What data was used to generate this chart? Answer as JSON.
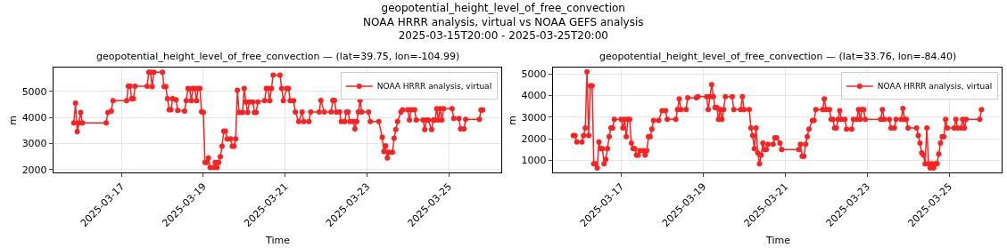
{
  "chart_data": [
    {
      "type": "line",
      "title": "geopotential_height_level_of_free_convection — (lat=39.75, lon=-104.99)",
      "xlabel": "Time",
      "ylabel": "m",
      "annotations": [
        "geopotential_height_level_of_free_convection\nNOAA HRRR analysis, virtual vs NOAA GEFS analysis\n2025-03-15T20:00 - 2025-03-25T20:00"
      ],
      "x": [
        "2025-03-15T20:00",
        "2025-03-15T21:00",
        "2025-03-15T22:00",
        "2025-03-15T23:00",
        "2025-03-16T00:00",
        "2025-03-16T01:00",
        "2025-03-16T15:00",
        "2025-03-16T16:00",
        "2025-03-16T18:00",
        "2025-03-16T19:00",
        "2025-03-17T03:00",
        "2025-03-17T04:00",
        "2025-03-17T05:00",
        "2025-03-17T06:00",
        "2025-03-17T07:00",
        "2025-03-17T08:00",
        "2025-03-17T15:00",
        "2025-03-17T16:00",
        "2025-03-17T17:00",
        "2025-03-17T18:00",
        "2025-03-17T19:00",
        "2025-03-18T00:00",
        "2025-03-18T01:00",
        "2025-03-18T02:00",
        "2025-03-18T03:00",
        "2025-03-18T04:00",
        "2025-03-18T05:00",
        "2025-03-18T06:00",
        "2025-03-18T08:00",
        "2025-03-18T09:00",
        "2025-03-18T13:00",
        "2025-03-18T14:00",
        "2025-03-18T15:00",
        "2025-03-18T16:00",
        "2025-03-18T17:00",
        "2025-03-18T18:00",
        "2025-03-18T19:00",
        "2025-03-18T20:00",
        "2025-03-18T21:00",
        "2025-03-18T22:00",
        "2025-03-18T23:00",
        "2025-03-19T00:00",
        "2025-03-19T01:00",
        "2025-03-19T02:00",
        "2025-03-19T03:00",
        "2025-03-19T04:00",
        "2025-03-19T06:00",
        "2025-03-19T07:00",
        "2025-03-19T08:00",
        "2025-03-19T09:00",
        "2025-03-19T10:00",
        "2025-03-19T11:00",
        "2025-03-19T12:00",
        "2025-03-19T13:00",
        "2025-03-19T14:00",
        "2025-03-19T16:00",
        "2025-03-19T17:00",
        "2025-03-19T18:00",
        "2025-03-19T19:00",
        "2025-03-19T20:00",
        "2025-03-19T21:00",
        "2025-03-19T23:00",
        "2025-03-20T00:00",
        "2025-03-20T01:00",
        "2025-03-20T02:00",
        "2025-03-20T03:00",
        "2025-03-20T05:00",
        "2025-03-20T06:00",
        "2025-03-20T07:00",
        "2025-03-20T08:00",
        "2025-03-20T12:00",
        "2025-03-20T13:00",
        "2025-03-20T14:00",
        "2025-03-20T15:00",
        "2025-03-20T16:00",
        "2025-03-20T17:00",
        "2025-03-20T21:00",
        "2025-03-20T22:00",
        "2025-03-20T23:00",
        "2025-03-21T01:00",
        "2025-03-21T02:00",
        "2025-03-21T03:00",
        "2025-03-21T05:00",
        "2025-03-21T06:00",
        "2025-03-21T08:00",
        "2025-03-21T10:00",
        "2025-03-21T11:00",
        "2025-03-21T14:00",
        "2025-03-21T15:00",
        "2025-03-21T20:00",
        "2025-03-21T21:00",
        "2025-03-21T23:00",
        "2025-03-22T03:00",
        "2025-03-22T04:00",
        "2025-03-22T05:00",
        "2025-03-22T06:00",
        "2025-03-22T08:00",
        "2025-03-22T09:00",
        "2025-03-22T11:00",
        "2025-03-22T12:00",
        "2025-03-22T13:00",
        "2025-03-22T14:00",
        "2025-03-22T16:00",
        "2025-03-22T17:00",
        "2025-03-22T18:00",
        "2025-03-22T19:00",
        "2025-03-22T20:00",
        "2025-03-22T21:00",
        "2025-03-23T01:00",
        "2025-03-23T02:00",
        "2025-03-23T07:00",
        "2025-03-23T09:00",
        "2025-03-23T10:00",
        "2025-03-23T11:00",
        "2025-03-23T12:00",
        "2025-03-23T13:00",
        "2025-03-23T15:00",
        "2025-03-23T16:00",
        "2025-03-23T17:00",
        "2025-03-23T18:00",
        "2025-03-23T20:00",
        "2025-03-23T21:00",
        "2025-03-24T00:00",
        "2025-03-24T01:00",
        "2025-03-24T02:00",
        "2025-03-24T04:00",
        "2025-03-24T05:00",
        "2025-03-24T09:00",
        "2025-03-24T10:00",
        "2025-03-24T11:00",
        "2025-03-24T12:00",
        "2025-03-24T14:00",
        "2025-03-24T15:00",
        "2025-03-24T16:00",
        "2025-03-24T17:00",
        "2025-03-24T18:00",
        "2025-03-24T19:00",
        "2025-03-24T20:00",
        "2025-03-24T21:00",
        "2025-03-25T02:00",
        "2025-03-25T03:00",
        "2025-03-25T06:00",
        "2025-03-25T07:00",
        "2025-03-25T09:00",
        "2025-03-25T10:00",
        "2025-03-25T18:00",
        "2025-03-25T19:00",
        "2025-03-25T20:00"
      ],
      "series": [
        {
          "name": "NOAA HRRR analysis, virtual",
          "color": "#ff2020",
          "values": [
            3800,
            4550,
            3460,
            3800,
            4200,
            3800,
            3800,
            4200,
            4250,
            4650,
            4650,
            5200,
            5200,
            4720,
            4720,
            5200,
            5200,
            5740,
            5740,
            5180,
            5740,
            5740,
            5180,
            5180,
            4720,
            4300,
            4300,
            4720,
            4680,
            4270,
            4250,
            4650,
            5120,
            5100,
            4650,
            5120,
            5120,
            4650,
            5120,
            5120,
            4220,
            4200,
            2280,
            2280,
            2450,
            2080,
            2080,
            2280,
            2080,
            2280,
            2500,
            2900,
            3480,
            3480,
            3180,
            3180,
            2900,
            2900,
            3180,
            5050,
            4200,
            4200,
            5120,
            4600,
            4200,
            4600,
            4600,
            4200,
            4200,
            4600,
            4650,
            5120,
            5120,
            4650,
            5120,
            5630,
            5630,
            5120,
            4650,
            5120,
            5120,
            4650,
            4650,
            4210,
            3850,
            4210,
            3850,
            3850,
            4210,
            4210,
            4660,
            4210,
            4210,
            4660,
            4660,
            4210,
            4210,
            3850,
            3850,
            4210,
            4210,
            3850,
            3850,
            3570,
            3850,
            4210,
            4660,
            4210,
            4210,
            3850,
            3850,
            3240,
            2700,
            2920,
            2450,
            2670,
            2670,
            3210,
            3540,
            3850,
            4210,
            4300,
            4300,
            3910,
            4300,
            4300,
            3910,
            3910,
            3540,
            3910,
            3910,
            3540,
            3910,
            3910,
            4340,
            3910,
            4340,
            3910,
            4340,
            4340,
            3970,
            3970,
            3570,
            3570,
            3930,
            3930,
            4290,
            4290
          ]
        }
      ],
      "xlim": [
        "2025-03-15T08:00",
        "2025-03-26T07:00"
      ],
      "xticks": [
        "2025-03-17",
        "2025-03-19",
        "2025-03-21",
        "2025-03-23",
        "2025-03-25"
      ],
      "ylim": [
        1900,
        5920
      ],
      "yticks": [
        2000,
        3000,
        4000,
        5000
      ],
      "grid": true,
      "legend": "top right",
      "marker": "circle",
      "line_style": "solid"
    },
    {
      "type": "line",
      "title": "geopotential_height_level_of_free_convection — (lat=33.76, lon=-84.40)",
      "xlabel": "Time",
      "ylabel": "m",
      "x": [
        "2025-03-15T20:00",
        "2025-03-15T21:00",
        "2025-03-15T22:00",
        "2025-03-16T01:00",
        "2025-03-16T02:00",
        "2025-03-16T03:00",
        "2025-03-16T04:00",
        "2025-03-16T05:00",
        "2025-03-16T06:00",
        "2025-03-16T07:00",
        "2025-03-16T08:00",
        "2025-03-16T09:00",
        "2025-03-16T10:00",
        "2025-03-16T11:00",
        "2025-03-16T12:00",
        "2025-03-16T13:00",
        "2025-03-16T14:00",
        "2025-03-16T15:00",
        "2025-03-16T16:00",
        "2025-03-16T17:00",
        "2025-03-16T18:00",
        "2025-03-16T19:00",
        "2025-03-16T20:00",
        "2025-03-17T00:00",
        "2025-03-17T01:00",
        "2025-03-17T02:00",
        "2025-03-17T03:00",
        "2025-03-17T04:00",
        "2025-03-17T05:00",
        "2025-03-17T06:00",
        "2025-03-17T07:00",
        "2025-03-17T08:00",
        "2025-03-17T09:00",
        "2025-03-17T10:00",
        "2025-03-17T11:00",
        "2025-03-17T13:00",
        "2025-03-17T14:00",
        "2025-03-17T15:00",
        "2025-03-17T16:00",
        "2025-03-17T17:00",
        "2025-03-17T18:00",
        "2025-03-17T19:00",
        "2025-03-17T22:00",
        "2025-03-18T00:00",
        "2025-03-18T02:00",
        "2025-03-18T03:00",
        "2025-03-18T08:00",
        "2025-03-18T09:00",
        "2025-03-18T10:00",
        "2025-03-18T11:00",
        "2025-03-18T14:00",
        "2025-03-18T15:00",
        "2025-03-18T20:00",
        "2025-03-18T21:00",
        "2025-03-19T02:00",
        "2025-03-19T03:00",
        "2025-03-19T04:00",
        "2025-03-19T05:00",
        "2025-03-19T06:00",
        "2025-03-19T07:00",
        "2025-03-19T08:00",
        "2025-03-19T09:00",
        "2025-03-19T10:00",
        "2025-03-19T11:00",
        "2025-03-19T12:00",
        "2025-03-19T13:00",
        "2025-03-19T17:00",
        "2025-03-19T18:00",
        "2025-03-19T22:00",
        "2025-03-19T23:00",
        "2025-03-20T00:00",
        "2025-03-20T03:00",
        "2025-03-20T04:00",
        "2025-03-20T05:00",
        "2025-03-20T06:00",
        "2025-03-20T07:00",
        "2025-03-20T08:00",
        "2025-03-20T09:00",
        "2025-03-20T10:00",
        "2025-03-20T11:00",
        "2025-03-20T12:00",
        "2025-03-20T13:00",
        "2025-03-20T14:00",
        "2025-03-20T17:00",
        "2025-03-20T18:00",
        "2025-03-20T19:00",
        "2025-03-20T21:00",
        "2025-03-20T22:00",
        "2025-03-21T08:00",
        "2025-03-21T09:00",
        "2025-03-21T10:00",
        "2025-03-21T11:00",
        "2025-03-21T12:00",
        "2025-03-21T13:00",
        "2025-03-21T14:00",
        "2025-03-21T16:00",
        "2025-03-21T17:00",
        "2025-03-21T18:00",
        "2025-03-21T22:00",
        "2025-03-21T23:00",
        "2025-03-22T00:00",
        "2025-03-22T02:00",
        "2025-03-22T03:00",
        "2025-03-22T04:00",
        "2025-03-22T05:00",
        "2025-03-22T06:00",
        "2025-03-22T07:00",
        "2025-03-22T08:00",
        "2025-03-22T09:00",
        "2025-03-22T11:00",
        "2025-03-22T12:00",
        "2025-03-22T15:00",
        "2025-03-22T16:00",
        "2025-03-22T18:00",
        "2025-03-22T19:00",
        "2025-03-22T20:00",
        "2025-03-22T21:00",
        "2025-03-22T22:00",
        "2025-03-22T23:00",
        "2025-03-23T08:00",
        "2025-03-23T09:00",
        "2025-03-23T10:00",
        "2025-03-23T13:00",
        "2025-03-23T14:00",
        "2025-03-23T16:00",
        "2025-03-23T17:00",
        "2025-03-23T20:00",
        "2025-03-23T21:00",
        "2025-03-23T22:00",
        "2025-03-23T23:00",
        "2025-03-24T00:00",
        "2025-03-24T05:00",
        "2025-03-24T06:00",
        "2025-03-24T07:00",
        "2025-03-24T08:00",
        "2025-03-24T09:00",
        "2025-03-24T10:00",
        "2025-03-24T11:00",
        "2025-03-24T12:00",
        "2025-03-24T13:00",
        "2025-03-24T14:00",
        "2025-03-24T15:00",
        "2025-03-24T16:00",
        "2025-03-24T17:00",
        "2025-03-24T18:00",
        "2025-03-24T19:00",
        "2025-03-24T20:00",
        "2025-03-24T21:00",
        "2025-03-24T22:00",
        "2025-03-24T23:00",
        "2025-03-25T03:00",
        "2025-03-25T04:00",
        "2025-03-25T05:00",
        "2025-03-25T07:00",
        "2025-03-25T08:00",
        "2025-03-25T09:00",
        "2025-03-25T10:00",
        "2025-03-25T18:00",
        "2025-03-25T19:00"
      ],
      "series": [
        {
          "name": "NOAA HRRR analysis, virtual",
          "color": "#ff2020",
          "values": [
            2150,
            2150,
            1850,
            1850,
            2150,
            2500,
            5100,
            2150,
            4450,
            4450,
            850,
            850,
            650,
            1850,
            1550,
            1550,
            850,
            1050,
            1550,
            2100,
            2500,
            2500,
            2900,
            2900,
            2500,
            2900,
            2100,
            2900,
            2900,
            1800,
            1550,
            1550,
            1250,
            1250,
            1450,
            1450,
            1250,
            1450,
            2100,
            2100,
            2450,
            2850,
            2850,
            3300,
            3300,
            2900,
            2900,
            3350,
            3850,
            3350,
            3350,
            3900,
            3900,
            3950,
            3950,
            3350,
            3950,
            4500,
            3950,
            3450,
            3450,
            2900,
            3350,
            2900,
            3350,
            3950,
            3950,
            3350,
            3350,
            3950,
            3350,
            3350,
            2500,
            2150,
            1550,
            2500,
            1350,
            850,
            1250,
            1800,
            1500,
            1500,
            1750,
            1750,
            2050,
            2050,
            1800,
            1500,
            1500,
            1750,
            1200,
            1200,
            1750,
            2100,
            2450,
            2850,
            2850,
            3350,
            3350,
            3850,
            3350,
            3350,
            2900,
            2900,
            2500,
            2500,
            2900,
            3300,
            2900,
            2900,
            2450,
            2450,
            2900,
            2900,
            3350,
            2900,
            3350,
            3350,
            2900,
            2900,
            3350,
            2900,
            2900,
            2500,
            2500,
            2900,
            2900,
            3400,
            2900,
            2900,
            2500,
            2500,
            2150,
            1800,
            1350,
            1250,
            850,
            2500,
            850,
            650,
            850,
            650,
            850,
            850,
            1300,
            1800,
            2100,
            2100,
            2900,
            2500,
            2500,
            2900,
            2500,
            2500,
            2900,
            2500,
            2900,
            2900,
            3350
          ]
        }
      ],
      "xlim": [
        "2025-03-15T08:00",
        "2025-03-26T07:00"
      ],
      "xticks": [
        "2025-03-17",
        "2025-03-19",
        "2025-03-21",
        "2025-03-23",
        "2025-03-25"
      ],
      "ylim": [
        450,
        5300
      ],
      "yticks": [
        1000,
        2000,
        3000,
        4000,
        5000
      ],
      "grid": true,
      "legend": "top right",
      "marker": "circle",
      "line_style": "solid"
    }
  ]
}
